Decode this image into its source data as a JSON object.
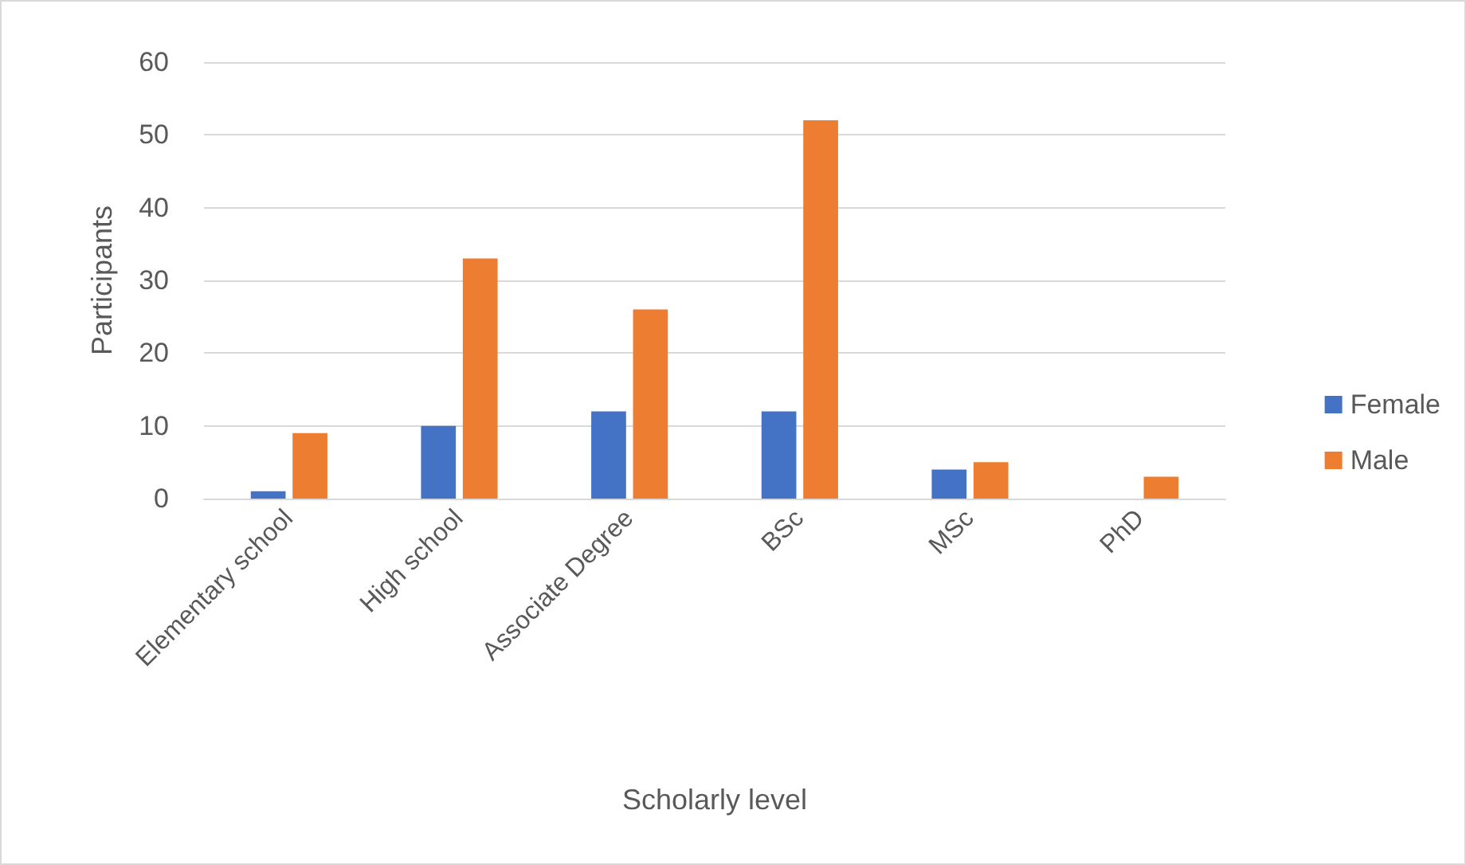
{
  "chart_data": {
    "type": "bar",
    "xlabel": "Scholarly level",
    "ylabel": "Participants",
    "categories": [
      "Elementary school",
      "High school",
      "Associate Degree",
      "BSc",
      "MSc",
      "PhD"
    ],
    "series": [
      {
        "name": "Female",
        "color": "#4472c4",
        "values": [
          1,
          10,
          12,
          12,
          4,
          0
        ]
      },
      {
        "name": "Male",
        "color": "#ed7d31",
        "values": [
          9,
          33,
          26,
          52,
          5,
          3
        ]
      }
    ],
    "ylim": [
      0,
      60
    ],
    "yticks": [
      0,
      10,
      20,
      30,
      40,
      50,
      60
    ],
    "grid": "y",
    "legend": "right"
  }
}
